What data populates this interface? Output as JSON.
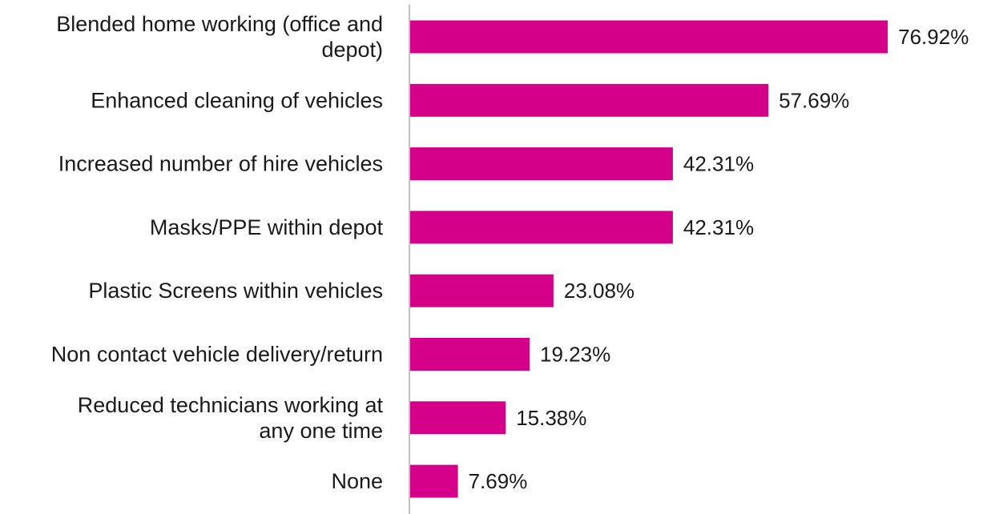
{
  "chart_data": {
    "type": "bar",
    "orientation": "horizontal",
    "categories": [
      "Blended home working (office and depot)",
      "Enhanced cleaning of vehicles",
      "Increased number of hire vehicles",
      "Masks/PPE within depot",
      "Plastic Screens within vehicles",
      "Non contact vehicle delivery/return",
      "Reduced technicians working at any one time",
      "None"
    ],
    "category_lines": [
      [
        "Blended home working (office and",
        "depot)"
      ],
      [
        "Enhanced cleaning of vehicles"
      ],
      [
        "Increased number of hire vehicles"
      ],
      [
        "Masks/PPE within depot"
      ],
      [
        "Plastic Screens within vehicles"
      ],
      [
        "Non contact vehicle delivery/return"
      ],
      [
        "Reduced technicians working at",
        "any one time"
      ],
      [
        "None"
      ]
    ],
    "values": [
      76.92,
      57.69,
      42.31,
      42.31,
      23.08,
      19.23,
      15.38,
      7.69
    ],
    "value_labels": [
      "76.92%",
      "57.69%",
      "42.31%",
      "42.31%",
      "23.08%",
      "19.23%",
      "15.38%",
      "7.69%"
    ],
    "title": "",
    "xlabel": "",
    "ylabel": "",
    "xlim": [
      0,
      100
    ],
    "grid": false,
    "legend": "none",
    "bar_color": "#d4008a",
    "axis_color": "#bfbfbf"
  }
}
